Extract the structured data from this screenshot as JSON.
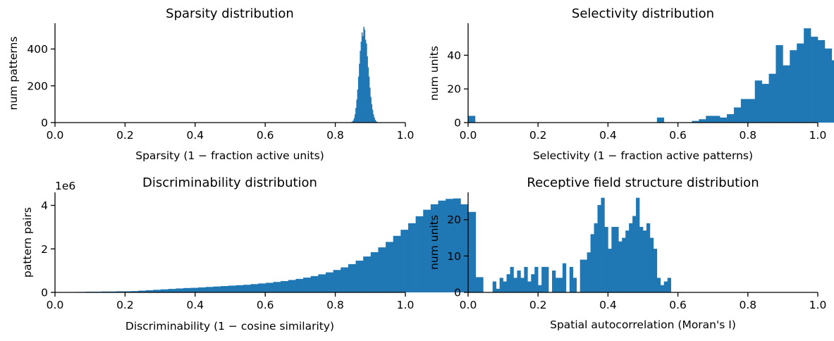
{
  "bar_color": "#1f77b4",
  "chart_data": [
    {
      "type": "bar",
      "title": "Sparsity distribution",
      "xlabel": "Sparsity (1 −  fraction active units)",
      "ylabel": "num patterns",
      "offset_text": "",
      "xlim": [
        0,
        1
      ],
      "ylim": [
        0,
        540
      ],
      "xticks": [
        0,
        0.2,
        0.4,
        0.6,
        0.8,
        1.0
      ],
      "xtick_labels": [
        "0.0",
        "0.2",
        "0.4",
        "0.6",
        "0.8",
        "1.0"
      ],
      "yticks": [
        0,
        200,
        400
      ],
      "ytick_labels": [
        "0",
        "200",
        "400"
      ],
      "grid": false,
      "bin_edges_start": 0.845,
      "bin_width": 0.0025,
      "values": [
        3,
        6,
        12,
        24,
        45,
        80,
        125,
        180,
        250,
        320,
        390,
        440,
        490,
        470,
        520,
        505,
        450,
        430,
        360,
        300,
        250,
        190,
        140,
        100,
        70,
        45,
        28,
        15,
        8,
        4
      ]
    },
    {
      "type": "bar",
      "title": "Selectivity distribution",
      "xlabel": "Selectivity (1 −  fraction active patterns)",
      "ylabel": "num units",
      "offset_text": "",
      "xlim": [
        0,
        1
      ],
      "ylim": [
        0,
        59
      ],
      "xticks": [
        0,
        0.2,
        0.4,
        0.6,
        0.8,
        1.0
      ],
      "xtick_labels": [
        "0.0",
        "0.2",
        "0.4",
        "0.6",
        "0.8",
        "1.0"
      ],
      "yticks": [
        0,
        20,
        40
      ],
      "ytick_labels": [
        "0",
        "20",
        "40"
      ],
      "grid": false,
      "bin_edges_start": 0.0,
      "bin_width": 0.02,
      "values": [
        4,
        0,
        0,
        0,
        0,
        0,
        0,
        0,
        0,
        0,
        0,
        0,
        0,
        0,
        0,
        0,
        0,
        0,
        0,
        0,
        0,
        0,
        0,
        0,
        0,
        0,
        0,
        3,
        0,
        0,
        0,
        0,
        1,
        2,
        4,
        4,
        3,
        5,
        9,
        14,
        14,
        25,
        23,
        29,
        46,
        34,
        43,
        47,
        56,
        51,
        49,
        44,
        37
      ]
    },
    {
      "type": "bar",
      "title": "Discriminability distribution",
      "xlabel": "Discriminability (1 −  cosine similarity)",
      "ylabel": "pattern pairs",
      "offset_text": "1e6",
      "xlim": [
        0,
        1
      ],
      "ylim": [
        0,
        4.6
      ],
      "xticks": [
        0,
        0.2,
        0.4,
        0.6,
        0.8,
        1.0
      ],
      "xtick_labels": [
        "0.0",
        "0.2",
        "0.4",
        "0.6",
        "0.8",
        "1.0"
      ],
      "yticks": [
        0,
        2,
        4
      ],
      "ytick_labels": [
        "0",
        "2",
        "4"
      ],
      "grid": false,
      "bin_edges_start": 0.045,
      "bin_width": 0.0214,
      "values": [
        0.01,
        0.02,
        0.03,
        0.03,
        0.04,
        0.04,
        0.05,
        0.05,
        0.06,
        0.08,
        0.1,
        0.12,
        0.14,
        0.16,
        0.18,
        0.2,
        0.21,
        0.23,
        0.25,
        0.27,
        0.29,
        0.31,
        0.33,
        0.35,
        0.38,
        0.41,
        0.44,
        0.48,
        0.52,
        0.57,
        0.62,
        0.68,
        0.75,
        0.83,
        0.92,
        1.03,
        1.15,
        1.3,
        1.46,
        1.65,
        1.85,
        2.07,
        2.32,
        2.6,
        2.88,
        3.18,
        3.5,
        3.8,
        4.05,
        4.22,
        4.3,
        4.32,
        4.05,
        3.7,
        0.7
      ]
    },
    {
      "type": "bar",
      "title": "Receptive field structure distribution",
      "xlabel": "Spatial autocorrelation (Moran's I)",
      "ylabel": "num units",
      "offset_text": "",
      "xlim": [
        0,
        1
      ],
      "ylim": [
        0,
        27.5
      ],
      "xticks": [
        0,
        0.2,
        0.4,
        0.6,
        0.8,
        1.0
      ],
      "xtick_labels": [
        "0.0",
        "0.2",
        "0.4",
        "0.6",
        "0.8",
        "1.0"
      ],
      "yticks": [
        0,
        10,
        20
      ],
      "ytick_labels": [
        "0",
        "10",
        "20"
      ],
      "grid": false,
      "bin_edges_start": 0.0,
      "bin_width": 0.01,
      "values": [
        13,
        5,
        3,
        2,
        0,
        0,
        0,
        3,
        1,
        4,
        3,
        5,
        7,
        4,
        6,
        4,
        7,
        3,
        5,
        7,
        2,
        7,
        7,
        0,
        6,
        4,
        4,
        8,
        0,
        7,
        4,
        0,
        9,
        9,
        11,
        16,
        19,
        24,
        26,
        18,
        12,
        18,
        18,
        14,
        15,
        17,
        19,
        21,
        26,
        18,
        17,
        19,
        15,
        12,
        4,
        2,
        3,
        4
      ]
    }
  ]
}
